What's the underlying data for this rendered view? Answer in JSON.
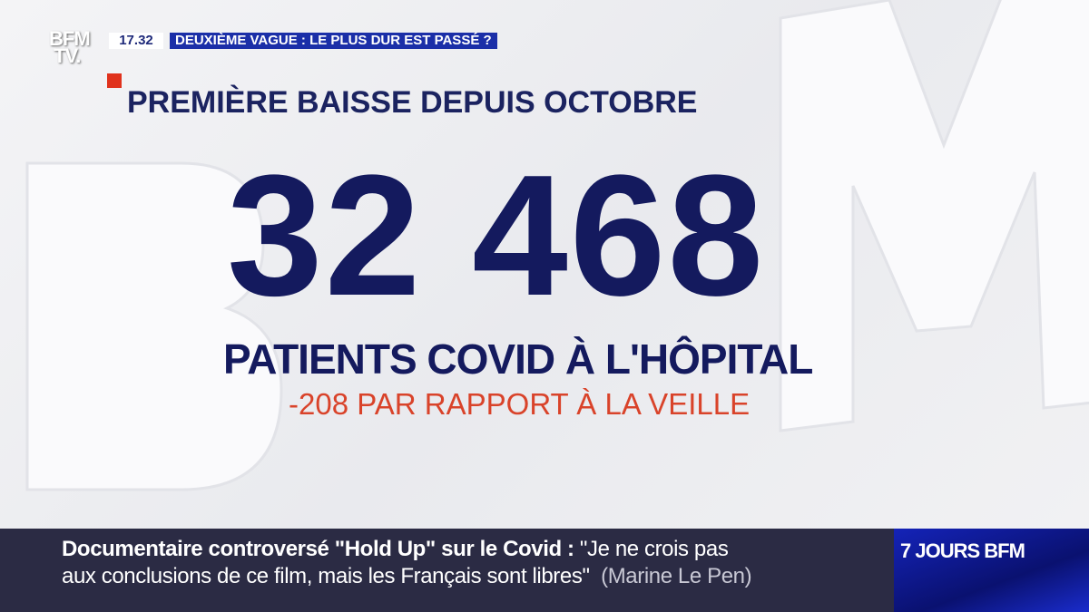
{
  "channel": {
    "logo": "BFM TV",
    "time": "17.32",
    "headline": "DEUXIÈME VAGUE : LE PLUS DUR EST PASSÉ ?"
  },
  "graphic": {
    "title": "PREMIÈRE BAISSE DEPUIS OCTOBRE",
    "number": "32 468",
    "label": "PATIENTS COVID À L'HÔPITAL",
    "delta": "-208 PAR RAPPORT À LA VEILLE"
  },
  "ticker": {
    "topic": "Documentaire controversé \"Hold Up\" sur le Covid :",
    "quote_line1": "\"Je ne crois pas",
    "quote_line2": "aux conclusions de ce film, mais les Français sont libres\"",
    "attribution": "(Marine Le Pen)",
    "program": "7 JOURS BFM"
  },
  "colors": {
    "navy": "#141a5e",
    "accent_red": "#e0321c",
    "headline_blue": "#1b2fa8",
    "ticker_bg": "#2b2b44"
  }
}
